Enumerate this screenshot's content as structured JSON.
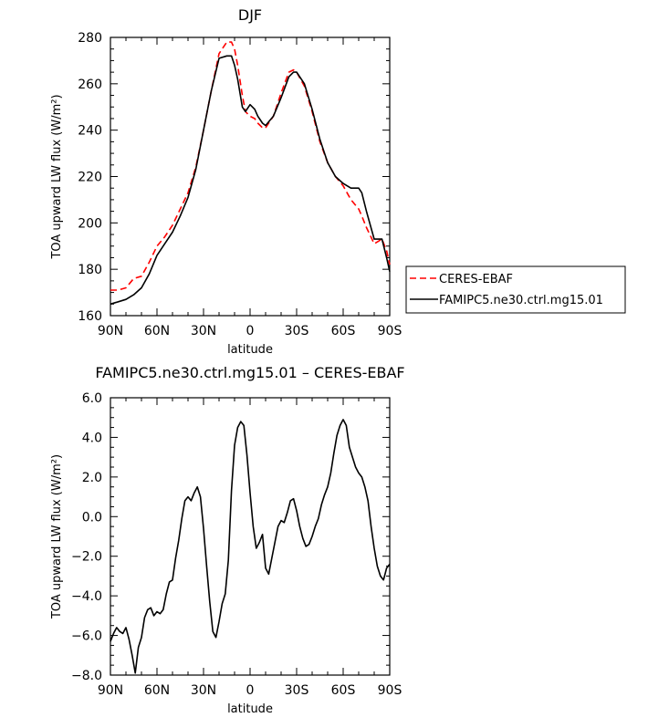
{
  "chart_data": [
    {
      "type": "line",
      "title": "DJF",
      "xlabel": "latitude",
      "ylabel": "TOA upward LW flux (W/m²)",
      "xlim": [
        90,
        -90
      ],
      "ylim": [
        160,
        280
      ],
      "x_ticks": [
        90,
        60,
        30,
        0,
        -30,
        -60,
        -90
      ],
      "x_tick_labels": [
        "90N",
        "60N",
        "30N",
        "0",
        "30S",
        "60S",
        "90S"
      ],
      "y_ticks": [
        160,
        180,
        200,
        220,
        240,
        260,
        280
      ],
      "y_tick_labels": [
        "160",
        "180",
        "200",
        "220",
        "240",
        "260",
        "280"
      ],
      "legend": {
        "position": "outside-right"
      },
      "series": [
        {
          "name": "CERES-EBAF",
          "color": "#ff0000",
          "dash": "dashed",
          "x": [
            90,
            85,
            80,
            75,
            70,
            65,
            60,
            55,
            50,
            45,
            40,
            35,
            30,
            25,
            20,
            15,
            12,
            10,
            8,
            5,
            3,
            0,
            -3,
            -5,
            -8,
            -10,
            -15,
            -20,
            -25,
            -28,
            -30,
            -35,
            -40,
            -45,
            -50,
            -55,
            -60,
            -65,
            -70,
            -72,
            -75,
            -80,
            -85,
            -88,
            -90
          ],
          "y": [
            171,
            171,
            172,
            176,
            177,
            183,
            190,
            194,
            199,
            206,
            213,
            224,
            240,
            257,
            273,
            278,
            278,
            275,
            268,
            255,
            248,
            246,
            245,
            243,
            241,
            241,
            246,
            256,
            265,
            266,
            265,
            259,
            248,
            235,
            226,
            220,
            216,
            210,
            206,
            203,
            198,
            191,
            193,
            188,
            182
          ]
        },
        {
          "name": "FAMIPC5.ne30.ctrl.mg15.01",
          "color": "#000000",
          "dash": "solid",
          "x": [
            90,
            85,
            80,
            75,
            70,
            65,
            60,
            55,
            50,
            45,
            40,
            35,
            30,
            25,
            20,
            15,
            12,
            10,
            8,
            5,
            3,
            0,
            -3,
            -5,
            -8,
            -10,
            -15,
            -20,
            -25,
            -28,
            -30,
            -35,
            -40,
            -45,
            -50,
            -55,
            -60,
            -65,
            -70,
            -72,
            -75,
            -80,
            -85,
            -88,
            -90
          ],
          "y": [
            165,
            166,
            167,
            169,
            172,
            178,
            186,
            191,
            196,
            203,
            211,
            223,
            240,
            257,
            271,
            272,
            272,
            268,
            262,
            250,
            248,
            251,
            249,
            246,
            243,
            242,
            246,
            254,
            263,
            265,
            265,
            260,
            249,
            236,
            226,
            220,
            217,
            215,
            215,
            213,
            205,
            193,
            193,
            185,
            179
          ]
        }
      ]
    },
    {
      "type": "line",
      "title": "FAMIPC5.ne30.ctrl.mg15.01 – CERES-EBAF",
      "xlabel": "latitude",
      "ylabel": "TOA upward LW flux (W/m²)",
      "xlim": [
        90,
        -90
      ],
      "ylim": [
        -8,
        6
      ],
      "x_ticks": [
        90,
        60,
        30,
        0,
        -30,
        -60,
        -90
      ],
      "x_tick_labels": [
        "90N",
        "60N",
        "30N",
        "0",
        "30S",
        "60S",
        "90S"
      ],
      "y_ticks": [
        -8,
        -6,
        -4,
        -2,
        0,
        2,
        4,
        6
      ],
      "y_tick_labels": [
        "−8.0",
        "−6.0",
        "−4.0",
        "−2.0",
        "0.0",
        "2.0",
        "4.0",
        "6.0"
      ],
      "series": [
        {
          "color": "#000000",
          "dash": "solid",
          "x": [
            90,
            88,
            86,
            84,
            82,
            80,
            78,
            76,
            74,
            72,
            70,
            68,
            66,
            64,
            62,
            60,
            58,
            56,
            54,
            52,
            50,
            48,
            46,
            44,
            42,
            40,
            38,
            36,
            34,
            32,
            30,
            28,
            26,
            24,
            22,
            20,
            18,
            16,
            14,
            12,
            10,
            8,
            6,
            4,
            2,
            0,
            -2,
            -4,
            -6,
            -8,
            -10,
            -12,
            -14,
            -16,
            -18,
            -20,
            -22,
            -24,
            -26,
            -28,
            -30,
            -32,
            -34,
            -36,
            -38,
            -40,
            -42,
            -44,
            -46,
            -48,
            -50,
            -52,
            -54,
            -56,
            -58,
            -60,
            -62,
            -64,
            -66,
            -68,
            -70,
            -72,
            -74,
            -76,
            -78,
            -80,
            -82,
            -84,
            -86,
            -88,
            -90
          ],
          "y": [
            -6.3,
            -5.9,
            -5.6,
            -5.8,
            -5.9,
            -5.6,
            -6.2,
            -7.0,
            -7.9,
            -6.6,
            -6.1,
            -5.1,
            -4.7,
            -4.6,
            -5.0,
            -4.8,
            -4.9,
            -4.7,
            -3.9,
            -3.3,
            -3.2,
            -2.1,
            -1.2,
            -0.1,
            0.8,
            1.0,
            0.8,
            1.2,
            1.5,
            1.0,
            -0.6,
            -2.5,
            -4.3,
            -5.8,
            -6.1,
            -5.3,
            -4.4,
            -3.9,
            -2.2,
            1.3,
            3.6,
            4.5,
            4.8,
            4.6,
            3.1,
            1.2,
            -0.5,
            -1.6,
            -1.3,
            -0.9,
            -2.6,
            -2.9,
            -2.1,
            -1.3,
            -0.5,
            -0.2,
            -0.3,
            0.2,
            0.8,
            0.9,
            0.3,
            -0.5,
            -1.1,
            -1.5,
            -1.4,
            -1.0,
            -0.5,
            -0.1,
            0.6,
            1.1,
            1.5,
            2.2,
            3.2,
            4.1,
            4.6,
            4.9,
            4.6,
            3.5,
            3.0,
            2.5,
            2.2,
            2.0,
            1.5,
            0.8,
            -0.5,
            -1.6,
            -2.5,
            -3.0,
            -3.2,
            -2.6,
            -2.4
          ]
        }
      ]
    }
  ]
}
